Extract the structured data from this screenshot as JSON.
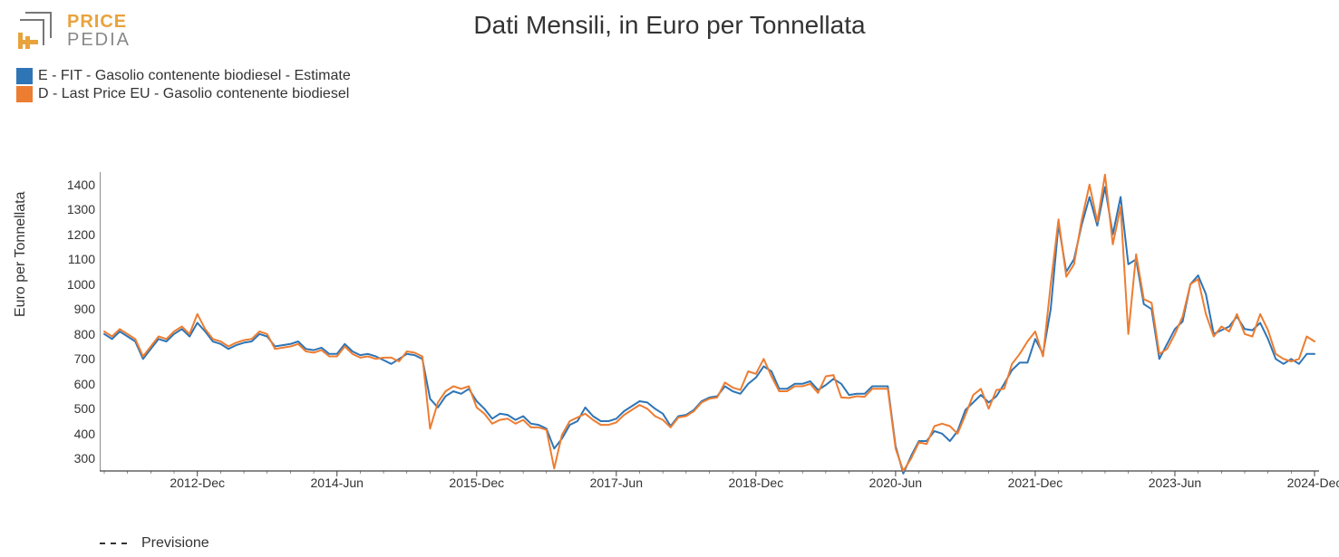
{
  "logo": {
    "brand1": "PRICE",
    "brand2": "PEDIA",
    "brand_color": "#e8a33d",
    "icon_gray": "#777777"
  },
  "chart": {
    "type": "line",
    "title": "Dati Mensili, in Euro per Tonnellata",
    "title_fontsize": 28,
    "ylabel": "Euro per Tonnellata",
    "label_fontsize": 16,
    "background_color": "#ffffff",
    "axis_color": "#444444",
    "tick_fontsize": 14,
    "line_width": 2,
    "ylim": [
      250,
      1450
    ],
    "yticks": [
      300,
      400,
      500,
      600,
      700,
      800,
      900,
      1000,
      1100,
      1200,
      1300,
      1400
    ],
    "xticks": [
      "2012-Dec",
      "2014-Jun",
      "2015-Dec",
      "2017-Jun",
      "2018-Dec",
      "2020-Jun",
      "2021-Dec",
      "2023-Jun",
      "2024-Dec"
    ],
    "xtick_idx": [
      12,
      30,
      48,
      66,
      84,
      102,
      120,
      138,
      156
    ],
    "n_points": 157,
    "series": [
      {
        "id": "E",
        "label": "E - FIT - Gasolio contenente biodiesel - Estimate",
        "color": "#2e75b6",
        "values": [
          800,
          780,
          810,
          790,
          770,
          700,
          740,
          780,
          770,
          800,
          820,
          790,
          845,
          810,
          770,
          760,
          740,
          755,
          765,
          770,
          800,
          790,
          750,
          755,
          760,
          770,
          740,
          735,
          745,
          720,
          720,
          760,
          730,
          715,
          720,
          710,
          695,
          680,
          700,
          720,
          715,
          700,
          540,
          505,
          550,
          570,
          560,
          580,
          530,
          500,
          460,
          480,
          475,
          455,
          470,
          440,
          435,
          420,
          340,
          380,
          435,
          450,
          505,
          470,
          450,
          450,
          460,
          490,
          510,
          530,
          525,
          500,
          480,
          430,
          470,
          475,
          495,
          530,
          545,
          550,
          590,
          570,
          560,
          600,
          625,
          670,
          650,
          580,
          580,
          600,
          600,
          610,
          575,
          595,
          620,
          600,
          555,
          560,
          560,
          590,
          590,
          590,
          350,
          240,
          310,
          370,
          370,
          410,
          400,
          370,
          410,
          495,
          525,
          555,
          525,
          550,
          600,
          655,
          685,
          685,
          780,
          720,
          900,
          1240,
          1050,
          1100,
          1240,
          1350,
          1235,
          1390,
          1200,
          1350,
          1080,
          1100,
          920,
          900,
          700,
          760,
          820,
          850,
          1000,
          1035,
          960,
          800,
          815,
          830,
          870,
          820,
          815,
          845,
          780,
          700,
          680,
          700,
          680,
          720,
          720
        ]
      },
      {
        "id": "D",
        "label": "D - Last Price EU - Gasolio contenente biodiesel",
        "color": "#ed7d31",
        "values": [
          810,
          790,
          820,
          800,
          780,
          710,
          750,
          790,
          780,
          810,
          830,
          800,
          880,
          820,
          780,
          770,
          750,
          765,
          775,
          780,
          810,
          800,
          740,
          745,
          750,
          760,
          730,
          725,
          735,
          710,
          710,
          750,
          720,
          705,
          710,
          700,
          705,
          705,
          690,
          730,
          725,
          710,
          420,
          525,
          570,
          590,
          580,
          590,
          505,
          480,
          440,
          455,
          460,
          440,
          455,
          425,
          425,
          415,
          260,
          395,
          450,
          465,
          480,
          455,
          435,
          435,
          445,
          475,
          495,
          515,
          500,
          470,
          455,
          425,
          465,
          470,
          490,
          525,
          540,
          545,
          605,
          585,
          575,
          650,
          640,
          700,
          630,
          570,
          570,
          590,
          590,
          600,
          563,
          630,
          635,
          545,
          543,
          550,
          548,
          580,
          580,
          580,
          340,
          250,
          300,
          365,
          358,
          430,
          440,
          430,
          400,
          475,
          555,
          580,
          500,
          575,
          580,
          680,
          720,
          770,
          810,
          710,
          1000,
          1260,
          1030,
          1080,
          1260,
          1400,
          1250,
          1440,
          1160,
          1310,
          800,
          1120,
          940,
          925,
          720,
          740,
          800,
          870,
          1000,
          1020,
          880,
          790,
          830,
          810,
          880,
          800,
          790,
          880,
          815,
          720,
          700,
          690,
          700,
          790,
          770
        ]
      }
    ],
    "forecast_legend": {
      "label": "Previsione",
      "dash": "6,6",
      "color": "#333333"
    }
  }
}
